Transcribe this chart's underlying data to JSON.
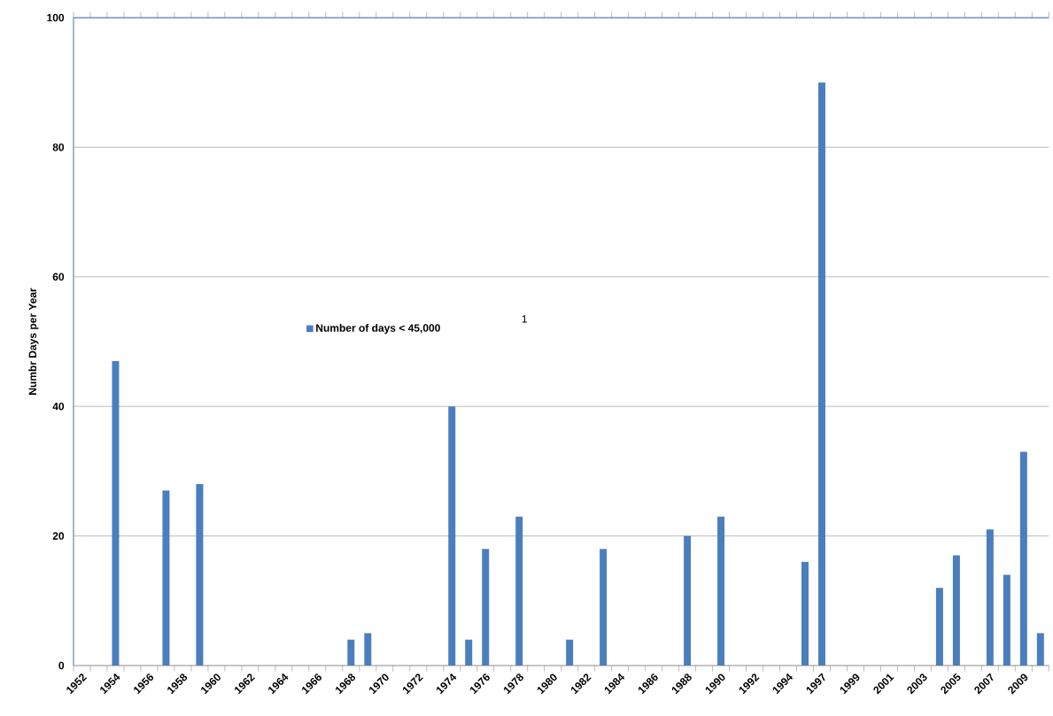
{
  "chart_data": {
    "type": "bar",
    "ylabel": "Numbr Days per Year",
    "categories": [
      "1952",
      null,
      "1954",
      null,
      "1956",
      null,
      "1958",
      null,
      "1960",
      null,
      "1962",
      null,
      "1964",
      null,
      "1966",
      null,
      "1968",
      null,
      "1970",
      null,
      "1972",
      null,
      "1974",
      null,
      "1976",
      null,
      "1978",
      null,
      "1980",
      null,
      "1982",
      null,
      "1984",
      null,
      "1986",
      null,
      "1988",
      null,
      "1990",
      null,
      "1992",
      null,
      "1994",
      null,
      "1997",
      null,
      "1999",
      null,
      "2001",
      null,
      "2003",
      null,
      "2005",
      null,
      "2007",
      null,
      "2009",
      null
    ],
    "series": [
      {
        "name": "Number of days < 45,000",
        "color": "#4a7ebf",
        "values": [
          0,
          0,
          47,
          0,
          0,
          27,
          0,
          28,
          0,
          0,
          0,
          0,
          0,
          0,
          0,
          0,
          4,
          5,
          0,
          0,
          0,
          0,
          40,
          4,
          18,
          0,
          23,
          0,
          0,
          4,
          0,
          18,
          0,
          0,
          0,
          0,
          20,
          0,
          23,
          0,
          0,
          0,
          0,
          16,
          90,
          0,
          0,
          0,
          0,
          0,
          0,
          12,
          17,
          0,
          21,
          14,
          33,
          5
        ]
      }
    ],
    "ylim": [
      0,
      100
    ],
    "yticks": [
      0,
      20,
      40,
      60,
      80,
      100
    ],
    "grid": "y",
    "legend": "left",
    "annotations": [
      "1"
    ]
  }
}
